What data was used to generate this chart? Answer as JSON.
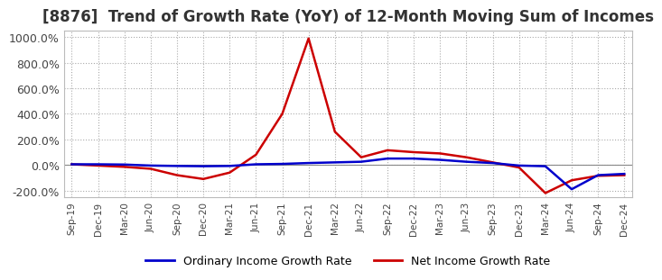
{
  "title": "[8876]  Trend of Growth Rate (YoY) of 12-Month Moving Sum of Incomes",
  "title_fontsize": 12,
  "legend_labels": [
    "Ordinary Income Growth Rate",
    "Net Income Growth Rate"
  ],
  "legend_colors": [
    "#0000cc",
    "#cc0000"
  ],
  "ylim": [
    -250,
    1050
  ],
  "yticks": [
    -200,
    0,
    200,
    400,
    600,
    800,
    1000
  ],
  "ytick_labels": [
    "-200.0%",
    "0.0%",
    "200.0%",
    "400.0%",
    "600.0%",
    "800.0%",
    "1000.0%"
  ],
  "background_color": "#ffffff",
  "grid_color": "#aaaaaa",
  "dates": [
    "Sep-19",
    "Dec-19",
    "Mar-20",
    "Jun-20",
    "Sep-20",
    "Dec-20",
    "Mar-21",
    "Jun-21",
    "Sep-21",
    "Dec-21",
    "Mar-22",
    "Jun-22",
    "Sep-22",
    "Dec-22",
    "Mar-23",
    "Jun-23",
    "Sep-23",
    "Dec-23",
    "Mar-24",
    "Jun-24",
    "Sep-24",
    "Dec-24"
  ],
  "ordinary_income": [
    5,
    5,
    3,
    -5,
    -8,
    -10,
    -8,
    5,
    8,
    15,
    20,
    25,
    50,
    50,
    40,
    25,
    15,
    -5,
    -10,
    -190,
    -80,
    -70
  ],
  "net_income": [
    5,
    -5,
    -15,
    -30,
    -80,
    -110,
    -60,
    80,
    400,
    990,
    260,
    60,
    115,
    100,
    90,
    60,
    20,
    -20,
    -220,
    -120,
    -85,
    -80
  ]
}
